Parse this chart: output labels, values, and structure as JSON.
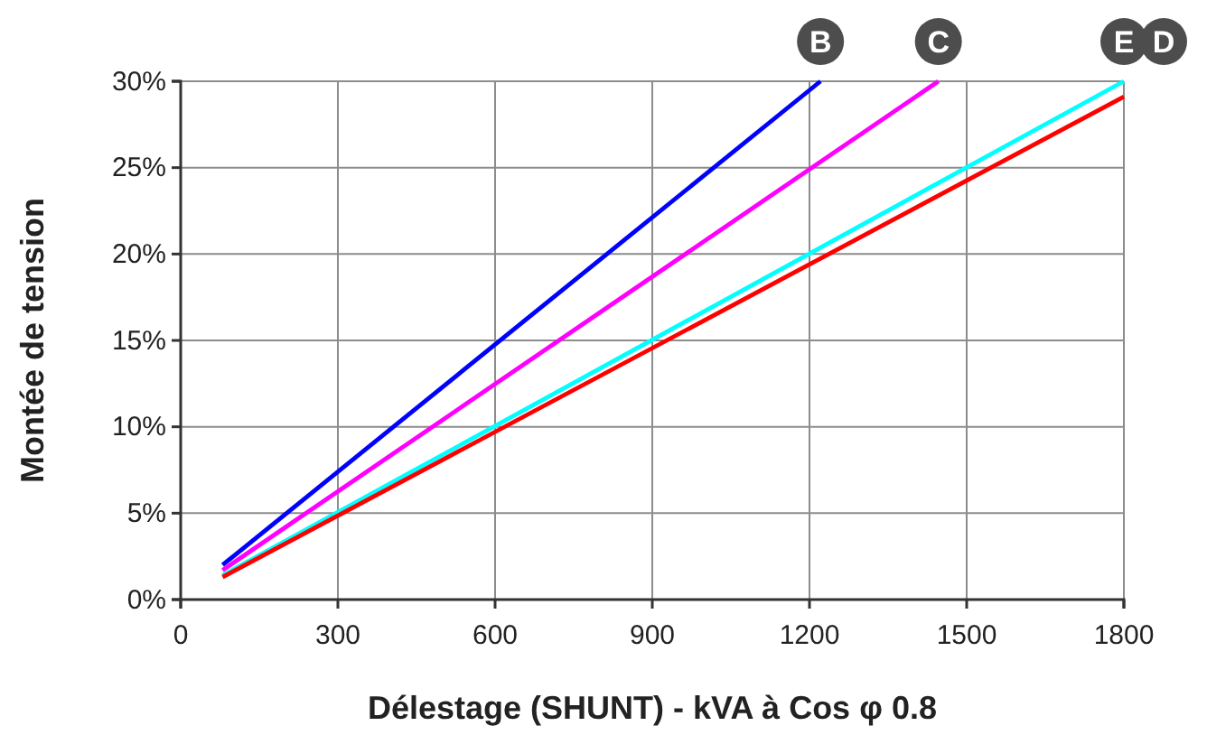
{
  "chart_data": {
    "type": "line",
    "xlabel": "Délestage (SHUNT) - kVA à Cos φ 0.8",
    "ylabel": "Montée de tension",
    "xlim": [
      0,
      1800
    ],
    "xticks": [
      0,
      300,
      600,
      900,
      1200,
      1500,
      1800
    ],
    "ylim": [
      0,
      30
    ],
    "yticks": [
      {
        "value": 0,
        "label": "0%"
      },
      {
        "value": 5,
        "label": "5%"
      },
      {
        "value": 10,
        "label": "10%"
      },
      {
        "value": 15,
        "label": "15%"
      },
      {
        "value": 20,
        "label": "20%"
      },
      {
        "value": 25,
        "label": "25%"
      },
      {
        "value": 30,
        "label": "30%"
      }
    ],
    "grid": true,
    "line_style": "solid",
    "marker": "none",
    "series": [
      {
        "name": "B",
        "color": "#0000ff",
        "x": [
          80,
          1221
        ],
        "values": [
          2.0,
          30
        ]
      },
      {
        "name": "C",
        "color": "#ff00ff",
        "x": [
          80,
          1446
        ],
        "values": [
          1.7,
          30
        ]
      },
      {
        "name": "E",
        "color": "#00ffff",
        "x": [
          80,
          1800
        ],
        "values": [
          1.4,
          30
        ]
      },
      {
        "name": "D",
        "color": "#ff0000",
        "x": [
          80,
          1800
        ],
        "values": [
          1.3,
          29.1
        ]
      }
    ]
  }
}
